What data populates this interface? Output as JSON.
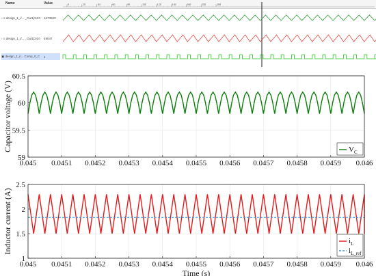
{
  "viewer": {
    "columns": {
      "name": "Name",
      "value": "Value"
    },
    "ruler_ticks": [
      "0",
      "20",
      "40",
      "60",
      "80",
      "100",
      "120",
      "140",
      "160",
      "180",
      "200"
    ],
    "signals": [
      {
        "name": "design_1_i/... _Out1[24:0",
        "value": "1673503",
        "color": "#2e9e3a",
        "kind": "triangle"
      },
      {
        "name": "design_1_i/... _Out1[24:0",
        "value": "49047",
        "color": "#e8453c",
        "kind": "saw"
      },
      {
        "name": "design_1_i/... Comp_0_C",
        "value": "1",
        "color": "#22c122",
        "kind": "pulse",
        "selected": true
      }
    ]
  },
  "chart_data": [
    {
      "type": "line",
      "ylabel": "Capacitor voltage (V)",
      "xlabel": "",
      "xlim": [
        0.045,
        0.046
      ],
      "ylim": [
        59,
        60.5
      ],
      "yticks": [
        "59",
        "59.5",
        "60",
        "60.5"
      ],
      "xticks": [
        "0.045",
        "0.0451",
        "0.0452",
        "0.0453",
        "0.0454",
        "0.0455",
        "0.0456",
        "0.0457",
        "0.0458",
        "0.0459",
        "0.046"
      ],
      "grid": true,
      "legend_position": "bottom-right",
      "series": [
        {
          "name": "V",
          "subscript": "C",
          "color": "#0a7d0a",
          "dash": "",
          "waveform": "ripple",
          "period": 3.333e-05,
          "min": 59.8,
          "max": 60.2
        }
      ]
    },
    {
      "type": "line",
      "ylabel": "Inductor current (A)",
      "xlabel": "Time (s)",
      "xlim": [
        0.045,
        0.046
      ],
      "ylim": [
        1,
        2.5
      ],
      "yticks": [
        "1",
        "1.5",
        "2",
        "2.5"
      ],
      "xticks": [
        "0.045",
        "0.0451",
        "0.0452",
        "0.0453",
        "0.0454",
        "0.0455",
        "0.0456",
        "0.0457",
        "0.0458",
        "0.0459",
        "0.046"
      ],
      "grid": true,
      "legend_position": "bottom-right",
      "series": [
        {
          "name": "i",
          "subscript": "L",
          "color": "#e31a1c",
          "dash": "",
          "waveform": "triangle",
          "period": 3.333e-05,
          "min": 1.5,
          "max": 2.3
        },
        {
          "name": "i",
          "subscript": "L_ref",
          "color": "#3a8fd8",
          "dash": "3,2",
          "waveform": "constant",
          "value": 1.83
        }
      ]
    }
  ]
}
